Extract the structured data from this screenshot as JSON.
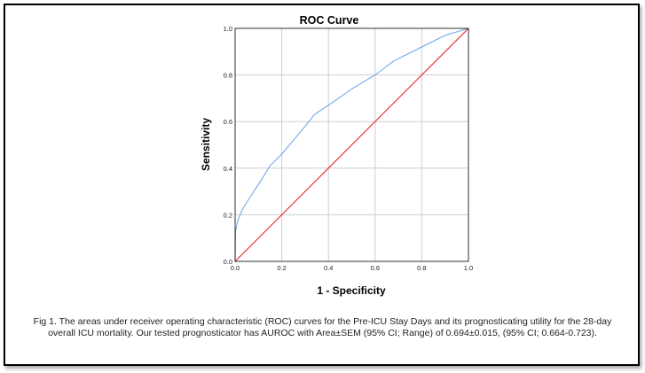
{
  "chart_data": {
    "type": "line",
    "title": "ROC Curve",
    "xlabel": "1 - Specificity",
    "ylabel": "Sensitivity",
    "xlim": [
      0,
      1
    ],
    "ylim": [
      0,
      1
    ],
    "x_ticks": [
      "0.0",
      "0.2",
      "0.4",
      "0.6",
      "0.8",
      "1.0"
    ],
    "y_ticks": [
      "0.0",
      "0.2",
      "0.4",
      "0.6",
      "0.8",
      "1.0"
    ],
    "grid": true,
    "series": [
      {
        "color": "#6aa2e6",
        "points": [
          [
            0,
            0
          ],
          [
            0.002,
            0.13
          ],
          [
            0.01,
            0.17
          ],
          [
            0.03,
            0.22
          ],
          [
            0.06,
            0.27
          ],
          [
            0.1,
            0.33
          ],
          [
            0.15,
            0.41
          ],
          [
            0.2,
            0.46
          ],
          [
            0.25,
            0.52
          ],
          [
            0.3,
            0.58
          ],
          [
            0.34,
            0.63
          ],
          [
            0.4,
            0.67
          ],
          [
            0.5,
            0.74
          ],
          [
            0.6,
            0.8
          ],
          [
            0.68,
            0.86
          ],
          [
            0.8,
            0.92
          ],
          [
            0.9,
            0.97
          ],
          [
            1,
            1
          ]
        ]
      },
      {
        "color": "#e31a1c",
        "points": [
          [
            0,
            0
          ],
          [
            1,
            1
          ]
        ]
      }
    ]
  },
  "caption": {
    "line1": "Fig 1. The areas under receiver operating characteristic (ROC) curves for the Pre-ICU Stay Days and its prognosticating utility for the 28-day",
    "line2": "overall ICU mortality. Our tested prognosticator has AUROC with Area±SEM (95% CI; Range) of 0.694±0.015, (95% CI; 0.664-0.723)."
  }
}
